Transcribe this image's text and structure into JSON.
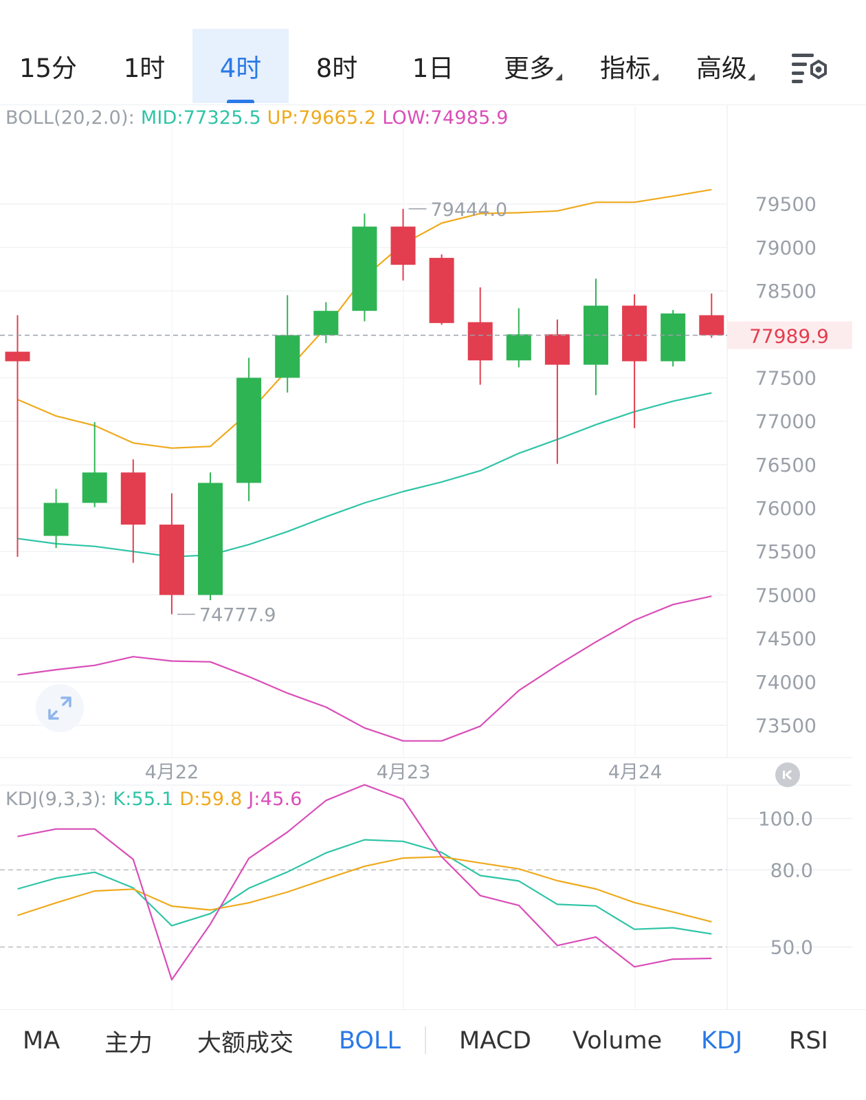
{
  "timeframe_tabs": [
    "15分",
    "1时",
    "4时",
    "8时",
    "1日",
    "更多",
    "指标",
    "高级"
  ],
  "active_timeframe": "4时",
  "settings_icon": "chart-settings-icon",
  "boll_legend": {
    "label": "BOLL(20,2.0):",
    "mid": "MID:77325.5",
    "up": "UP:79665.2",
    "low": "LOW:74985.9",
    "colors": {
      "mid": "#2ec4a6",
      "up": "#efa91c",
      "low": "#d94db8"
    }
  },
  "kdj_legend": {
    "label": "KDJ(9,3,3):",
    "k": "K:55.1",
    "d": "D:59.8",
    "j": "J:45.6",
    "colors": {
      "k": "#2ec4a6",
      "d": "#efa91c",
      "j": "#d94db8"
    }
  },
  "current_price": "77989.9",
  "high_marker": "79444.0",
  "low_marker": "74777.9",
  "colors": {
    "up": "#2fb454",
    "down": "#e23e4f",
    "accent": "#2a79e6"
  },
  "chart_data": [
    {
      "type": "candlestick",
      "x_labels": [
        "4月22",
        "4月23",
        "4月24"
      ],
      "y_ticks": [
        79500,
        79000,
        78500,
        77500,
        77000,
        76500,
        76000,
        75500,
        75000,
        74500,
        74000,
        73500
      ],
      "ylim": [
        73150,
        80050
      ],
      "candles": [
        {
          "open": 77800,
          "high": 78220,
          "low": 75440,
          "close": 77690
        },
        {
          "open": 75680,
          "high": 76220,
          "low": 75540,
          "close": 76060
        },
        {
          "open": 76060,
          "high": 76990,
          "low": 76010,
          "close": 76410
        },
        {
          "open": 76410,
          "high": 76560,
          "low": 75370,
          "close": 75810
        },
        {
          "open": 75810,
          "high": 76170,
          "low": 74777.9,
          "close": 75000
        },
        {
          "open": 75000,
          "high": 76410,
          "low": 74940,
          "close": 76290
        },
        {
          "open": 76290,
          "high": 77730,
          "low": 76080,
          "close": 77500
        },
        {
          "open": 77500,
          "high": 78450,
          "low": 77330,
          "close": 77990
        },
        {
          "open": 77990,
          "high": 78370,
          "low": 77900,
          "close": 78270
        },
        {
          "open": 78270,
          "high": 79390,
          "low": 78150,
          "close": 79240
        },
        {
          "open": 79240,
          "high": 79444.0,
          "low": 78620,
          "close": 78800
        },
        {
          "open": 78880,
          "high": 78920,
          "low": 78110,
          "close": 78130
        },
        {
          "open": 78140,
          "high": 78540,
          "low": 77420,
          "close": 77700
        },
        {
          "open": 77700,
          "high": 78300,
          "low": 77620,
          "close": 78000
        },
        {
          "open": 78000,
          "high": 78170,
          "low": 76510,
          "close": 77650
        },
        {
          "open": 77650,
          "high": 78640,
          "low": 77300,
          "close": 78330
        },
        {
          "open": 78330,
          "high": 78460,
          "low": 76920,
          "close": 77690
        },
        {
          "open": 77690,
          "high": 78280,
          "low": 77630,
          "close": 78240
        },
        {
          "open": 78220,
          "high": 78470,
          "low": 77960,
          "close": 77990
        }
      ],
      "series": [
        {
          "name": "UP",
          "values": [
            77250,
            77060,
            76950,
            76750,
            76690,
            76710,
            77100,
            77590,
            78080,
            78660,
            79040,
            79280,
            79390,
            79400,
            79420,
            79520,
            79520,
            79590,
            79665.2
          ]
        },
        {
          "name": "MID",
          "values": [
            75650,
            75590,
            75560,
            75500,
            75440,
            75460,
            75580,
            75730,
            75900,
            76060,
            76190,
            76300,
            76430,
            76630,
            76790,
            76960,
            77110,
            77230,
            77325.5
          ]
        },
        {
          "name": "LOW",
          "values": [
            74080,
            74140,
            74190,
            74290,
            74240,
            74230,
            74060,
            73870,
            73710,
            73470,
            73320,
            73320,
            73490,
            73900,
            74190,
            74460,
            74710,
            74890,
            74985.9
          ]
        }
      ]
    },
    {
      "type": "line",
      "title": "KDJ(9,3,3)",
      "y_ticks": [
        100.0,
        80.0,
        50.0
      ],
      "ylim": [
        30,
        106
      ],
      "series": [
        {
          "name": "K",
          "values": [
            72.6,
            76.8,
            79.1,
            73.0,
            58.3,
            63.0,
            72.9,
            79.2,
            86.6,
            91.7,
            91.1,
            86.8,
            77.8,
            75.7,
            66.6,
            66.0,
            56.9,
            57.5,
            55.1
          ]
        },
        {
          "name": "D",
          "values": [
            62.3,
            67.2,
            71.8,
            72.5,
            65.9,
            64.4,
            67.2,
            71.4,
            76.5,
            81.4,
            84.6,
            85.1,
            82.7,
            80.4,
            75.8,
            72.6,
            67.3,
            63.6,
            59.8
          ]
        },
        {
          "name": "J",
          "values": [
            93.0,
            95.9,
            95.9,
            84.1,
            37.3,
            58.9,
            84.5,
            94.7,
            107.0,
            113.1,
            107.5,
            85.1,
            70.0,
            66.2,
            50.6,
            53.9,
            42.3,
            45.3,
            45.6
          ]
        }
      ]
    }
  ],
  "indicator_tabs": [
    "MA",
    "主力",
    "大额成交",
    "BOLL",
    "MACD",
    "Volume",
    "KDJ",
    "RSI"
  ],
  "active_indicators": [
    "BOLL",
    "KDJ"
  ],
  "expand_icon": "expand-arrows-icon",
  "rewind_icon": "rewind-to-start-icon"
}
